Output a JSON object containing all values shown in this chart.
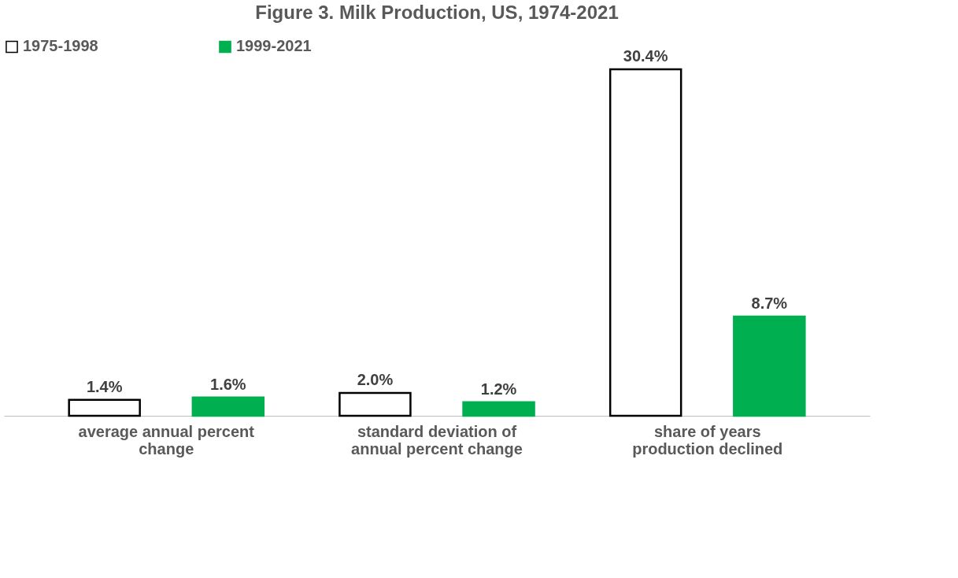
{
  "chart_data": {
    "type": "bar",
    "title": "Figure 3. Milk Production, US, 1974-2021",
    "categories": [
      "average annual percent change",
      "standard deviation of annual percent change",
      "share of years production declined"
    ],
    "series": [
      {
        "name": "1975-1998",
        "color": "#ffffff",
        "values": [
          1.4,
          2.0,
          30.4
        ],
        "value_labels": [
          "1.4%",
          "2.0%",
          "30.4%"
        ]
      },
      {
        "name": "1999-2021",
        "color": "#00b050",
        "values": [
          1.6,
          1.2,
          8.7
        ],
        "value_labels": [
          "1.6%",
          "1.2%",
          "8.7%"
        ]
      }
    ],
    "legend": "top",
    "grid": false
  }
}
